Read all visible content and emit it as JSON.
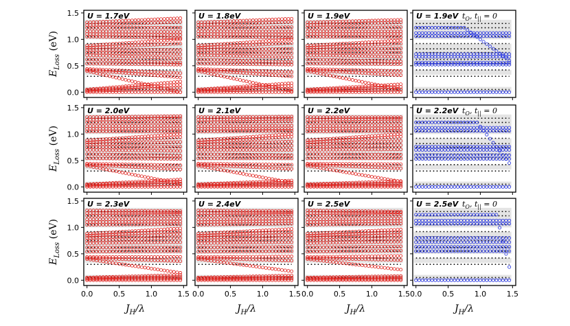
{
  "chart_data": {
    "type": "scatter",
    "layout": "3x4 grid of panels",
    "ylabel_main": "E",
    "ylabel_sub": "Loss",
    "ylabel_unit": " (eV)",
    "xlabel_main": "J",
    "xlabel_sub": "H",
    "xlabel_tail": "/λ",
    "xlim": [
      -0.05,
      1.55
    ],
    "ylim": [
      -0.1,
      1.55
    ],
    "xticks": [
      0.0,
      0.5,
      1.0,
      1.5
    ],
    "xtick_labels": [
      "0.0",
      "0.5",
      "1.0",
      "1.5"
    ],
    "yticks": [
      0.0,
      0.5,
      1.0,
      1.5
    ],
    "ytick_labels": [
      "0.0",
      "0.5",
      "1.0",
      "1.5"
    ],
    "x_samples": [
      0.0,
      0.05,
      0.1,
      0.15,
      0.2,
      0.25,
      0.3,
      0.35,
      0.4,
      0.45,
      0.5,
      0.55,
      0.6,
      0.65,
      0.7,
      0.75,
      0.8,
      0.85,
      0.9,
      0.95,
      1.0,
      1.05,
      1.1,
      1.15,
      1.2,
      1.25,
      1.3,
      1.35,
      1.4,
      1.45
    ],
    "shaded_bands": [
      [
        0.0,
        0.1
      ],
      [
        0.33,
        0.42
      ],
      [
        0.5,
        0.92
      ],
      [
        1.0,
        1.37
      ]
    ],
    "dotted_lines": [
      0.05,
      0.3,
      0.42,
      0.55,
      0.62,
      0.75,
      0.82,
      0.92,
      1.05,
      1.22,
      1.3
    ],
    "panels": [
      {
        "row": 0,
        "col": 0,
        "label": "U = 1.7eV",
        "color": "#e0201b",
        "series": [
          {
            "y0": 0.0,
            "y1": 0.0
          },
          {
            "y0": 0.02,
            "y1": 0.08
          },
          {
            "y0": 0.04,
            "y1": 0.14
          },
          {
            "y0": 0.05,
            "y1": 0.2
          },
          {
            "y0": 0.4,
            "y1": 0.0
          },
          {
            "y0": 0.42,
            "y1": 0.28
          },
          {
            "y0": 0.44,
            "y1": 0.36
          },
          {
            "y0": 0.54,
            "y1": 0.52
          },
          {
            "y0": 0.62,
            "y1": 0.56
          },
          {
            "y0": 0.7,
            "y1": 0.64
          },
          {
            "y0": 0.75,
            "y1": 0.72
          },
          {
            "y0": 0.8,
            "y1": 0.8
          },
          {
            "y0": 0.84,
            "y1": 0.92
          },
          {
            "y0": 0.88,
            "y1": 1.0
          },
          {
            "y0": 1.05,
            "y1": 1.02
          },
          {
            "y0": 1.1,
            "y1": 1.08
          },
          {
            "y0": 1.15,
            "y1": 1.14
          },
          {
            "y0": 1.22,
            "y1": 1.22
          },
          {
            "y0": 1.27,
            "y1": 1.33
          },
          {
            "y0": 1.32,
            "y1": 1.4
          }
        ]
      },
      {
        "row": 0,
        "col": 1,
        "label": "U = 1.8eV",
        "color": "#e0201b",
        "series": [
          {
            "y0": 0.0,
            "y1": 0.0
          },
          {
            "y0": 0.02,
            "y1": 0.06
          },
          {
            "y0": 0.04,
            "y1": 0.12
          },
          {
            "y0": 0.05,
            "y1": 0.17
          },
          {
            "y0": 0.4,
            "y1": 0.02
          },
          {
            "y0": 0.42,
            "y1": 0.3
          },
          {
            "y0": 0.44,
            "y1": 0.38
          },
          {
            "y0": 0.54,
            "y1": 0.52
          },
          {
            "y0": 0.62,
            "y1": 0.57
          },
          {
            "y0": 0.7,
            "y1": 0.66
          },
          {
            "y0": 0.75,
            "y1": 0.74
          },
          {
            "y0": 0.8,
            "y1": 0.82
          },
          {
            "y0": 0.84,
            "y1": 0.93
          },
          {
            "y0": 0.88,
            "y1": 1.0
          },
          {
            "y0": 1.05,
            "y1": 1.03
          },
          {
            "y0": 1.1,
            "y1": 1.09
          },
          {
            "y0": 1.15,
            "y1": 1.15
          },
          {
            "y0": 1.22,
            "y1": 1.23
          },
          {
            "y0": 1.27,
            "y1": 1.33
          },
          {
            "y0": 1.32,
            "y1": 1.39
          }
        ]
      },
      {
        "row": 0,
        "col": 2,
        "label": "U = 1.9eV",
        "color": "#e0201b",
        "series": [
          {
            "y0": 0.0,
            "y1": 0.0
          },
          {
            "y0": 0.02,
            "y1": 0.05
          },
          {
            "y0": 0.04,
            "y1": 0.1
          },
          {
            "y0": 0.05,
            "y1": 0.15
          },
          {
            "y0": 0.4,
            "y1": 0.05
          },
          {
            "y0": 0.42,
            "y1": 0.32
          },
          {
            "y0": 0.44,
            "y1": 0.4
          },
          {
            "y0": 0.54,
            "y1": 0.53
          },
          {
            "y0": 0.62,
            "y1": 0.58
          },
          {
            "y0": 0.7,
            "y1": 0.67
          },
          {
            "y0": 0.75,
            "y1": 0.75
          },
          {
            "y0": 0.8,
            "y1": 0.83
          },
          {
            "y0": 0.84,
            "y1": 0.92
          },
          {
            "y0": 0.88,
            "y1": 0.98
          },
          {
            "y0": 1.05,
            "y1": 1.04
          },
          {
            "y0": 1.1,
            "y1": 1.1
          },
          {
            "y0": 1.15,
            "y1": 1.15
          },
          {
            "y0": 1.22,
            "y1": 1.23
          },
          {
            "y0": 1.27,
            "y1": 1.32
          },
          {
            "y0": 1.32,
            "y1": 1.37
          }
        ]
      },
      {
        "row": 0,
        "col": 3,
        "label": "U = 1.9eV",
        "note_main": "t",
        "note_sub": "O",
        "note_mid": ", t",
        "note_sub2": "||",
        "note_tail": " = 0",
        "color": "#1f2ee0",
        "series": [
          {
            "y0": 0.0,
            "y1": 0.0
          },
          {
            "y0": 0.52,
            "y1": 0.52
          },
          {
            "y0": 0.56,
            "y1": 0.56
          },
          {
            "y0": 0.67,
            "y1": 0.67
          },
          {
            "y0": 0.72,
            "y1": 0.72
          },
          {
            "y0": 1.06,
            "y1": 1.06
          },
          {
            "y0": 1.12,
            "y1": 1.12
          },
          {
            "y0": 1.22,
            "y1": 1.22,
            "kink": 0.75,
            "yk": 0.6
          }
        ]
      },
      {
        "row": 1,
        "col": 0,
        "label": "U = 2.0eV",
        "color": "#e0201b",
        "series": [
          {
            "y0": 0.0,
            "y1": 0.0
          },
          {
            "y0": 0.02,
            "y1": 0.05
          },
          {
            "y0": 0.04,
            "y1": 0.1
          },
          {
            "y0": 0.05,
            "y1": 0.14
          },
          {
            "y0": 0.4,
            "y1": 0.06
          },
          {
            "y0": 0.42,
            "y1": 0.33
          },
          {
            "y0": 0.44,
            "y1": 0.41
          },
          {
            "y0": 0.54,
            "y1": 0.53
          },
          {
            "y0": 0.62,
            "y1": 0.59
          },
          {
            "y0": 0.7,
            "y1": 0.68
          },
          {
            "y0": 0.75,
            "y1": 0.76
          },
          {
            "y0": 0.8,
            "y1": 0.85
          },
          {
            "y0": 0.84,
            "y1": 0.94
          },
          {
            "y0": 0.88,
            "y1": 1.0
          },
          {
            "y0": 1.05,
            "y1": 1.05
          },
          {
            "y0": 1.1,
            "y1": 1.1
          },
          {
            "y0": 1.15,
            "y1": 1.16
          },
          {
            "y0": 1.22,
            "y1": 1.23
          },
          {
            "y0": 1.27,
            "y1": 1.3
          },
          {
            "y0": 1.32,
            "y1": 1.34
          }
        ]
      },
      {
        "row": 1,
        "col": 1,
        "label": "U = 2.1eV",
        "color": "#e0201b",
        "series": [
          {
            "y0": 0.0,
            "y1": 0.0
          },
          {
            "y0": 0.02,
            "y1": 0.04
          },
          {
            "y0": 0.04,
            "y1": 0.08
          },
          {
            "y0": 0.05,
            "y1": 0.12
          },
          {
            "y0": 0.4,
            "y1": 0.08
          },
          {
            "y0": 0.42,
            "y1": 0.34
          },
          {
            "y0": 0.44,
            "y1": 0.42
          },
          {
            "y0": 0.54,
            "y1": 0.54
          },
          {
            "y0": 0.62,
            "y1": 0.6
          },
          {
            "y0": 0.7,
            "y1": 0.7
          },
          {
            "y0": 0.75,
            "y1": 0.78
          },
          {
            "y0": 0.8,
            "y1": 0.86
          },
          {
            "y0": 0.84,
            "y1": 0.95
          },
          {
            "y0": 0.88,
            "y1": 1.0
          },
          {
            "y0": 1.05,
            "y1": 1.06
          },
          {
            "y0": 1.1,
            "y1": 1.1
          },
          {
            "y0": 1.15,
            "y1": 1.16
          },
          {
            "y0": 1.22,
            "y1": 1.24
          },
          {
            "y0": 1.27,
            "y1": 1.29
          },
          {
            "y0": 1.32,
            "y1": 1.33
          }
        ]
      },
      {
        "row": 1,
        "col": 2,
        "label": "U = 2.2eV",
        "color": "#e0201b",
        "series": [
          {
            "y0": 0.0,
            "y1": 0.0
          },
          {
            "y0": 0.02,
            "y1": 0.03
          },
          {
            "y0": 0.04,
            "y1": 0.07
          },
          {
            "y0": 0.05,
            "y1": 0.11
          },
          {
            "y0": 0.4,
            "y1": 0.1
          },
          {
            "y0": 0.42,
            "y1": 0.35
          },
          {
            "y0": 0.44,
            "y1": 0.43
          },
          {
            "y0": 0.54,
            "y1": 0.54
          },
          {
            "y0": 0.62,
            "y1": 0.61
          },
          {
            "y0": 0.7,
            "y1": 0.71
          },
          {
            "y0": 0.75,
            "y1": 0.79
          },
          {
            "y0": 0.8,
            "y1": 0.87
          },
          {
            "y0": 0.84,
            "y1": 0.95
          },
          {
            "y0": 0.88,
            "y1": 1.0
          },
          {
            "y0": 1.05,
            "y1": 1.06
          },
          {
            "y0": 1.1,
            "y1": 1.11
          },
          {
            "y0": 1.15,
            "y1": 1.17
          },
          {
            "y0": 1.22,
            "y1": 1.24
          },
          {
            "y0": 1.27,
            "y1": 1.29
          },
          {
            "y0": 1.32,
            "y1": 1.32
          }
        ]
      },
      {
        "row": 1,
        "col": 3,
        "label": "U = 2.2eV",
        "note_main": "t",
        "note_sub": "O",
        "note_mid": ", t",
        "note_sub2": "||",
        "note_tail": " = 0",
        "color": "#1f2ee0",
        "series": [
          {
            "y0": 0.0,
            "y1": 0.0
          },
          {
            "y0": 0.53,
            "y1": 0.53
          },
          {
            "y0": 0.6,
            "y1": 0.6
          },
          {
            "y0": 0.7,
            "y1": 0.7
          },
          {
            "y0": 0.76,
            "y1": 0.76
          },
          {
            "y0": 1.06,
            "y1": 1.06
          },
          {
            "y0": 1.12,
            "y1": 1.12
          },
          {
            "y0": 1.22,
            "y1": 1.22,
            "kink": 0.95,
            "yk": 0.45
          }
        ]
      },
      {
        "row": 2,
        "col": 0,
        "label": "U = 2.3eV",
        "color": "#e0201b",
        "series": [
          {
            "y0": 0.0,
            "y1": 0.0
          },
          {
            "y0": 0.02,
            "y1": 0.03
          },
          {
            "y0": 0.04,
            "y1": 0.06
          },
          {
            "y0": 0.05,
            "y1": 0.1
          },
          {
            "y0": 0.4,
            "y1": 0.14
          },
          {
            "y0": 0.42,
            "y1": 0.36
          },
          {
            "y0": 0.44,
            "y1": 0.44
          },
          {
            "y0": 0.54,
            "y1": 0.55
          },
          {
            "y0": 0.62,
            "y1": 0.62
          },
          {
            "y0": 0.7,
            "y1": 0.72
          },
          {
            "y0": 0.75,
            "y1": 0.8
          },
          {
            "y0": 0.8,
            "y1": 0.87
          },
          {
            "y0": 0.84,
            "y1": 0.93
          },
          {
            "y0": 0.88,
            "y1": 0.98
          },
          {
            "y0": 1.05,
            "y1": 1.06
          },
          {
            "y0": 1.1,
            "y1": 1.11
          },
          {
            "y0": 1.15,
            "y1": 1.17
          },
          {
            "y0": 1.22,
            "y1": 1.24
          },
          {
            "y0": 1.27,
            "y1": 1.28
          },
          {
            "y0": 1.32,
            "y1": 1.31
          }
        ]
      },
      {
        "row": 2,
        "col": 1,
        "label": "U = 2.4eV",
        "color": "#e0201b",
        "series": [
          {
            "y0": 0.0,
            "y1": 0.0
          },
          {
            "y0": 0.02,
            "y1": 0.03
          },
          {
            "y0": 0.04,
            "y1": 0.05
          },
          {
            "y0": 0.05,
            "y1": 0.09
          },
          {
            "y0": 0.4,
            "y1": 0.17
          },
          {
            "y0": 0.42,
            "y1": 0.37
          },
          {
            "y0": 0.44,
            "y1": 0.45
          },
          {
            "y0": 0.54,
            "y1": 0.55
          },
          {
            "y0": 0.62,
            "y1": 0.63
          },
          {
            "y0": 0.7,
            "y1": 0.72
          },
          {
            "y0": 0.75,
            "y1": 0.8
          },
          {
            "y0": 0.8,
            "y1": 0.86
          },
          {
            "y0": 0.84,
            "y1": 0.92
          },
          {
            "y0": 0.88,
            "y1": 0.97
          },
          {
            "y0": 1.05,
            "y1": 1.07
          },
          {
            "y0": 1.1,
            "y1": 1.12
          },
          {
            "y0": 1.15,
            "y1": 1.17
          },
          {
            "y0": 1.22,
            "y1": 1.24
          },
          {
            "y0": 1.27,
            "y1": 1.28
          },
          {
            "y0": 1.32,
            "y1": 1.31
          }
        ]
      },
      {
        "row": 2,
        "col": 2,
        "label": "U = 2.5eV",
        "color": "#e0201b",
        "series": [
          {
            "y0": 0.0,
            "y1": 0.0
          },
          {
            "y0": 0.02,
            "y1": 0.02
          },
          {
            "y0": 0.04,
            "y1": 0.05
          },
          {
            "y0": 0.05,
            "y1": 0.08
          },
          {
            "y0": 0.4,
            "y1": 0.2
          },
          {
            "y0": 0.42,
            "y1": 0.38
          },
          {
            "y0": 0.44,
            "y1": 0.46
          },
          {
            "y0": 0.54,
            "y1": 0.56
          },
          {
            "y0": 0.62,
            "y1": 0.64
          },
          {
            "y0": 0.7,
            "y1": 0.73
          },
          {
            "y0": 0.75,
            "y1": 0.8
          },
          {
            "y0": 0.8,
            "y1": 0.86
          },
          {
            "y0": 0.84,
            "y1": 0.91
          },
          {
            "y0": 0.88,
            "y1": 0.96
          },
          {
            "y0": 1.05,
            "y1": 1.07
          },
          {
            "y0": 1.1,
            "y1": 1.12
          },
          {
            "y0": 1.15,
            "y1": 1.17
          },
          {
            "y0": 1.22,
            "y1": 1.24
          },
          {
            "y0": 1.27,
            "y1": 1.28
          },
          {
            "y0": 1.32,
            "y1": 1.3
          }
        ]
      },
      {
        "row": 2,
        "col": 3,
        "label": "U = 2.5eV",
        "note_main": "t",
        "note_sub": "O",
        "note_mid": ", t",
        "note_sub2": "||",
        "note_tail": " = 0",
        "color": "#1f2ee0",
        "series": [
          {
            "y0": 0.0,
            "y1": 0.0
          },
          {
            "y0": 0.55,
            "y1": 0.55
          },
          {
            "y0": 0.63,
            "y1": 0.63
          },
          {
            "y0": 0.72,
            "y1": 0.72
          },
          {
            "y0": 0.8,
            "y1": 0.8
          },
          {
            "y0": 1.07,
            "y1": 1.07
          },
          {
            "y0": 1.13,
            "y1": 1.13
          },
          {
            "y0": 1.24,
            "y1": 1.24,
            "kink": 1.25,
            "yk": 0.25
          }
        ]
      }
    ]
  }
}
